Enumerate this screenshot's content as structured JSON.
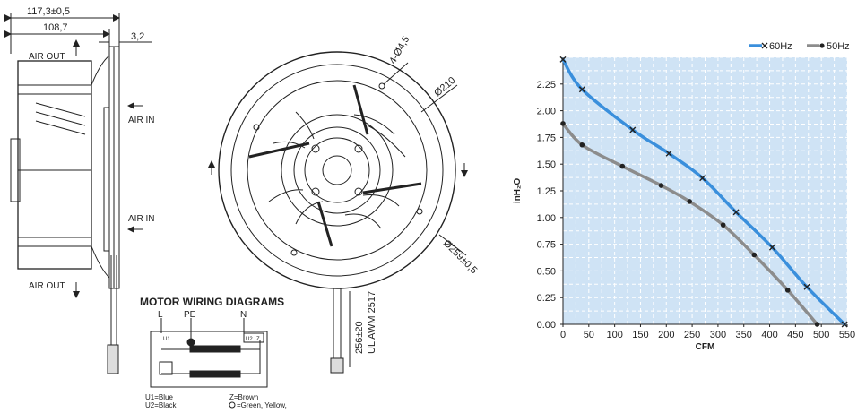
{
  "side_view": {
    "dim_overall": "117,3±0,5",
    "dim_inner": "108,7",
    "dim_small": "3,2",
    "air_out_top": "AIR OUT",
    "air_in_top": "AIR IN",
    "air_in_bottom": "AIR IN",
    "air_out_bottom": "AIR OUT"
  },
  "front_view": {
    "holes": "4-Ø4,5",
    "inner_dia": "Ø210",
    "outer_dia": "Ø259±0,5",
    "cable_length": "256±20",
    "cable_spec": "UL AWM 2517"
  },
  "wiring": {
    "title": "MOTOR WIRING DIAGRAMS",
    "term_L": "L",
    "term_PE": "PE",
    "term_N": "N",
    "u1": "U1",
    "u2": "U2",
    "z": "Z",
    "legend_u1": "U1=Blue",
    "legend_u2": "U2=Black",
    "legend_z": "Z=Brown",
    "legend_ground": "=Green, Yellow,"
  },
  "chart_data": {
    "type": "line",
    "xlabel": "CFM",
    "ylabel": "inH₂O",
    "xlim": [
      0,
      550
    ],
    "ylim": [
      0,
      2.25
    ],
    "xticks": [
      "0",
      "50",
      "100",
      "150",
      "200",
      "250",
      "300",
      "350",
      "400",
      "450",
      "500",
      "550"
    ],
    "yticks": [
      "0.00",
      "0.25",
      "0.50",
      "0.75",
      "1.00",
      "1.25",
      "1.50",
      "1.75",
      "2.00",
      "2.25"
    ],
    "grid": true,
    "legend_position": "top-right",
    "series": [
      {
        "name": "60Hz",
        "color": "#3a8fdc",
        "x": [
          0,
          37,
          135,
          205,
          270,
          335,
          405,
          472,
          545
        ],
        "y": [
          2.48,
          2.2,
          1.82,
          1.6,
          1.37,
          1.05,
          0.72,
          0.35,
          0.0
        ]
      },
      {
        "name": "50Hz",
        "color": "#8c8c8c",
        "x": [
          0,
          37,
          115,
          190,
          245,
          310,
          370,
          435,
          492
        ],
        "y": [
          1.88,
          1.68,
          1.48,
          1.3,
          1.15,
          0.93,
          0.65,
          0.32,
          0.0
        ]
      }
    ]
  },
  "colors": {
    "plot_bg": "#cfe3f5",
    "grid": "#ffffff",
    "line": "#222222"
  }
}
